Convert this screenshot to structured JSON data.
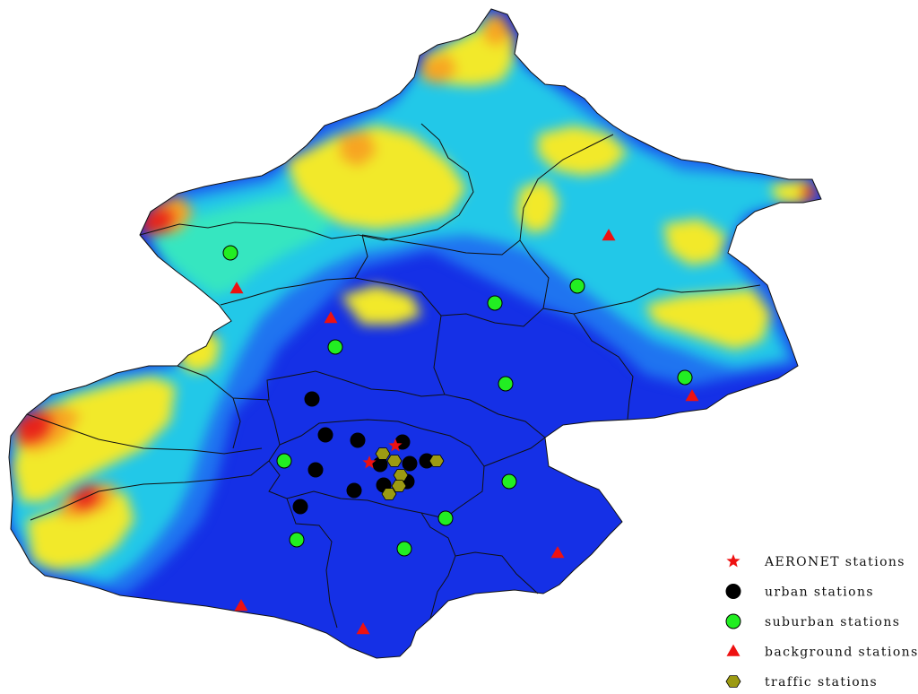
{
  "map": {
    "colors": {
      "land": "#1530e6",
      "boundary": "#111111",
      "aeronet": "#ee1111",
      "urban": "#000000",
      "suburban": "#22ee22",
      "background": "#ee1111",
      "traffic": "#9c9a12"
    },
    "elevation_ramp": [
      "#1530e6",
      "#1f74f0",
      "#22c8e8",
      "#36e6c0",
      "#f2e92a",
      "#f7a522",
      "#e8231a"
    ],
    "legend": [
      {
        "key": "aeronet",
        "label": "AERONET stations",
        "symbol": "star"
      },
      {
        "key": "urban",
        "label": "urban stations",
        "symbol": "circle"
      },
      {
        "key": "suburban",
        "label": "suburban stations",
        "symbol": "circle"
      },
      {
        "key": "background",
        "label": "background stations",
        "symbol": "triangle"
      },
      {
        "key": "traffic",
        "label": "traffic stations",
        "symbol": "hexagon"
      }
    ]
  }
}
